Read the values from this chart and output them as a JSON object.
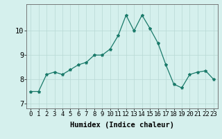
{
  "x": [
    0,
    1,
    2,
    3,
    4,
    5,
    6,
    7,
    8,
    9,
    10,
    11,
    12,
    13,
    14,
    15,
    16,
    17,
    18,
    19,
    20,
    21,
    22,
    23
  ],
  "y": [
    7.5,
    7.5,
    8.2,
    8.3,
    8.2,
    8.4,
    8.6,
    8.7,
    9.0,
    9.0,
    9.25,
    9.8,
    10.65,
    10.0,
    10.65,
    10.1,
    9.5,
    8.6,
    7.8,
    7.65,
    8.2,
    8.3,
    8.35,
    8.0
  ],
  "line_color": "#1a7a6a",
  "marker": "*",
  "marker_size": 3,
  "bg_color": "#d5f0ed",
  "grid_color": "#b8d8d4",
  "xlabel": "Humidex (Indice chaleur)",
  "xlim": [
    -0.5,
    23.5
  ],
  "ylim": [
    6.8,
    11.1
  ],
  "yticks": [
    7,
    8,
    9,
    10
  ],
  "xticks": [
    0,
    1,
    2,
    3,
    4,
    5,
    6,
    7,
    8,
    9,
    10,
    11,
    12,
    13,
    14,
    15,
    16,
    17,
    18,
    19,
    20,
    21,
    22,
    23
  ],
  "xtick_labels": [
    "0",
    "1",
    "2",
    "3",
    "4",
    "5",
    "6",
    "7",
    "8",
    "9",
    "10",
    "11",
    "12",
    "13",
    "14",
    "15",
    "16",
    "17",
    "18",
    "19",
    "20",
    "21",
    "22",
    "23"
  ],
  "tick_fontsize": 6.5,
  "xlabel_fontsize": 7.5
}
